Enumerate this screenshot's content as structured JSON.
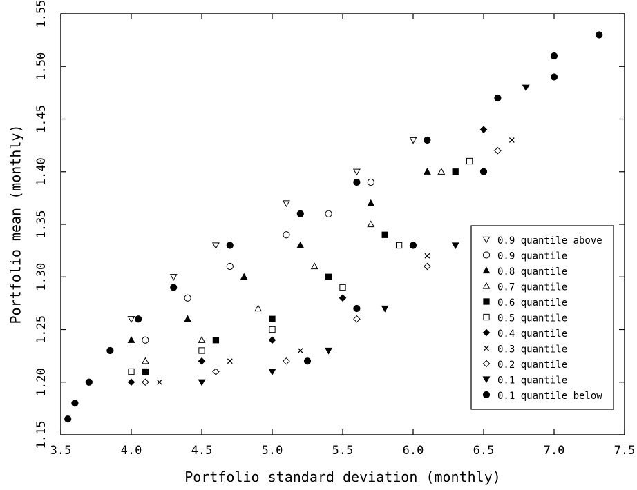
{
  "chart_data": {
    "type": "scatter",
    "title": "",
    "xlabel": "Portfolio standard deviation (monthly)",
    "ylabel": "Portfolio mean (monthly)",
    "xlim": [
      3.5,
      7.5
    ],
    "ylim": [
      1.15,
      1.55
    ],
    "xticks": [
      "3.5",
      "4.0",
      "4.5",
      "5.0",
      "5.5",
      "6.0",
      "6.5",
      "7.0",
      "7.5"
    ],
    "yticks": [
      "1.15",
      "1.20",
      "1.25",
      "1.30",
      "1.35",
      "1.40",
      "1.45",
      "1.50",
      "1.55"
    ],
    "grid": false,
    "legend_position": "right",
    "series": [
      {
        "name": "0.9 quantile above",
        "marker": "triangle-down-open",
        "points": [
          [
            4.0,
            1.26
          ],
          [
            4.3,
            1.3
          ],
          [
            4.6,
            1.33
          ],
          [
            5.1,
            1.37
          ],
          [
            5.6,
            1.4
          ],
          [
            6.0,
            1.43
          ]
        ]
      },
      {
        "name": "0.9 quantile",
        "marker": "circle-open",
        "points": [
          [
            4.1,
            1.24
          ],
          [
            4.4,
            1.28
          ],
          [
            4.7,
            1.31
          ],
          [
            5.1,
            1.34
          ],
          [
            5.4,
            1.36
          ],
          [
            5.7,
            1.39
          ]
        ]
      },
      {
        "name": "0.8 quantile",
        "marker": "triangle-up-filled",
        "points": [
          [
            4.0,
            1.24
          ],
          [
            4.4,
            1.26
          ],
          [
            4.8,
            1.3
          ],
          [
            5.2,
            1.33
          ],
          [
            5.7,
            1.37
          ],
          [
            6.1,
            1.4
          ]
        ]
      },
      {
        "name": "0.7 quantile",
        "marker": "triangle-up-open",
        "points": [
          [
            4.1,
            1.22
          ],
          [
            4.5,
            1.24
          ],
          [
            4.9,
            1.27
          ],
          [
            5.3,
            1.31
          ],
          [
            5.7,
            1.35
          ],
          [
            6.2,
            1.4
          ]
        ]
      },
      {
        "name": "0.6 quantile",
        "marker": "square-filled",
        "points": [
          [
            4.1,
            1.21
          ],
          [
            4.6,
            1.24
          ],
          [
            5.0,
            1.26
          ],
          [
            5.4,
            1.3
          ],
          [
            5.8,
            1.34
          ],
          [
            6.3,
            1.4
          ]
        ]
      },
      {
        "name": "0.5 quantile",
        "marker": "square-open",
        "points": [
          [
            4.0,
            1.21
          ],
          [
            4.5,
            1.23
          ],
          [
            5.0,
            1.25
          ],
          [
            5.5,
            1.29
          ],
          [
            5.9,
            1.33
          ],
          [
            6.4,
            1.41
          ]
        ]
      },
      {
        "name": "0.4 quantile",
        "marker": "diamond-filled",
        "points": [
          [
            4.0,
            1.2
          ],
          [
            4.5,
            1.22
          ],
          [
            5.0,
            1.24
          ],
          [
            5.5,
            1.28
          ],
          [
            6.0,
            1.33
          ],
          [
            6.5,
            1.44
          ]
        ]
      },
      {
        "name": "0.3 quantile",
        "marker": "cross",
        "points": [
          [
            4.2,
            1.2
          ],
          [
            4.7,
            1.22
          ],
          [
            5.2,
            1.23
          ],
          [
            5.6,
            1.27
          ],
          [
            6.1,
            1.32
          ],
          [
            6.7,
            1.43
          ]
        ]
      },
      {
        "name": "0.2 quantile",
        "marker": "diamond-open",
        "points": [
          [
            4.1,
            1.2
          ],
          [
            4.6,
            1.21
          ],
          [
            5.1,
            1.22
          ],
          [
            5.6,
            1.26
          ],
          [
            6.1,
            1.31
          ],
          [
            6.6,
            1.42
          ]
        ]
      },
      {
        "name": "0.1 quantile",
        "marker": "triangle-down-filled",
        "points": [
          [
            4.5,
            1.2
          ],
          [
            5.0,
            1.21
          ],
          [
            5.4,
            1.23
          ],
          [
            5.8,
            1.27
          ],
          [
            6.3,
            1.33
          ],
          [
            6.8,
            1.48
          ]
        ]
      },
      {
        "name": "0.1 quantile below",
        "marker": "circle-filled",
        "points": [
          [
            3.55,
            1.165
          ],
          [
            3.6,
            1.18
          ],
          [
            3.7,
            1.2
          ],
          [
            3.85,
            1.23
          ],
          [
            4.05,
            1.26
          ],
          [
            4.3,
            1.29
          ],
          [
            4.7,
            1.33
          ],
          [
            5.2,
            1.36
          ],
          [
            5.6,
            1.39
          ],
          [
            6.1,
            1.43
          ],
          [
            6.6,
            1.47
          ],
          [
            7.0,
            1.51
          ],
          [
            7.32,
            1.53
          ],
          [
            5.25,
            1.22
          ],
          [
            5.6,
            1.27
          ],
          [
            6.0,
            1.33
          ],
          [
            6.5,
            1.4
          ],
          [
            7.0,
            1.49
          ]
        ]
      }
    ]
  }
}
